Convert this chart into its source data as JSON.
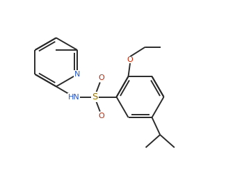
{
  "bg_color": "#ffffff",
  "line_color": "#2a2a2a",
  "N_color": "#2155cc",
  "S_color": "#9B7000",
  "O_color": "#cc2200",
  "text_color": "#2a2a2a",
  "figsize": [
    3.25,
    2.49
  ],
  "dpi": 100,
  "lw": 1.4,
  "fs": 8.0,
  "xlim": [
    0,
    9.5
  ],
  "ylim": [
    0,
    7.3
  ]
}
